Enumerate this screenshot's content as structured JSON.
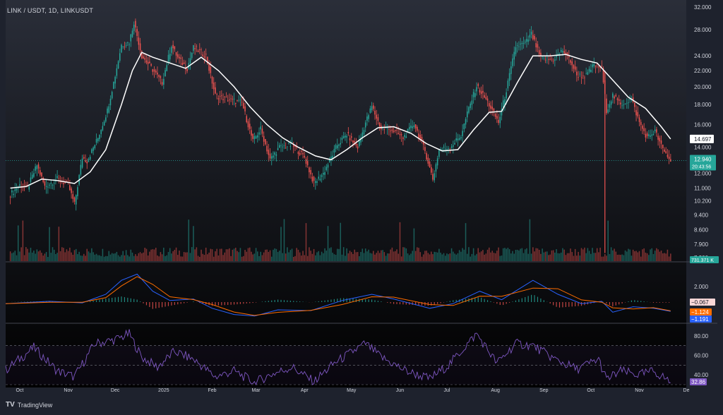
{
  "header": {
    "title": "LINK / USDT, 1D, LINKUSDT"
  },
  "footer": {
    "brand": "TradingView",
    "logo": "TV"
  },
  "colors": {
    "bull": "#26a69a",
    "bear": "#ef5350",
    "ma": "#ffffff",
    "macd": "#2962ff",
    "signal": "#ff6d00",
    "rsi": "#7e57c2",
    "axis_text": "#d1d4dc",
    "bg_top": "#2a2e39",
    "bg_bottom": "#000000"
  },
  "chart_data": [
    {
      "type": "candlestick",
      "name": "price",
      "ylim": [
        7.3,
        32.0
      ],
      "scale": "log",
      "y_ticks": [
        "32.000",
        "28.000",
        "24.000",
        "22.000",
        "20.000",
        "18.000",
        "16.000",
        "14.000",
        "12.000",
        "11.000",
        "10.200",
        "9.400",
        "8.600",
        "7.900",
        "7.300"
      ],
      "x_ticks": [
        "Oct",
        "Nov",
        "Dec",
        "2025",
        "Feb",
        "Mar",
        "Apr",
        "May",
        "Jun",
        "Jul",
        "Aug",
        "Sep",
        "Oct",
        "Nov",
        "De"
      ],
      "close_path": [
        [
          "2024-09-25",
          10.6
        ],
        [
          "2024-10-01",
          11.2
        ],
        [
          "2024-10-06",
          11.0
        ],
        [
          "2024-10-12",
          12.6
        ],
        [
          "2024-10-17",
          11.1
        ],
        [
          "2024-10-25",
          11.6
        ],
        [
          "2024-11-01",
          11.2
        ],
        [
          "2024-11-05",
          10.0
        ],
        [
          "2024-11-10",
          13.2
        ],
        [
          "2024-11-13",
          12.9
        ],
        [
          "2024-11-20",
          14.8
        ],
        [
          "2024-11-26",
          17.4
        ],
        [
          "2024-12-01",
          21.4
        ],
        [
          "2024-12-05",
          25.6
        ],
        [
          "2024-12-10",
          26.0
        ],
        [
          "2024-12-13",
          29.3
        ],
        [
          "2024-12-18",
          24.0
        ],
        [
          "2024-12-24",
          22.4
        ],
        [
          "2024-12-31",
          20.5
        ],
        [
          "2025-01-06",
          25.6
        ],
        [
          "2025-01-10",
          23.7
        ],
        [
          "2025-01-16",
          22.3
        ],
        [
          "2025-01-20",
          25.2
        ],
        [
          "2025-01-28",
          24.0
        ],
        [
          "2025-02-03",
          19.0
        ],
        [
          "2025-02-10",
          18.6
        ],
        [
          "2025-02-20",
          18.2
        ],
        [
          "2025-02-27",
          14.5
        ],
        [
          "2025-03-04",
          15.6
        ],
        [
          "2025-03-10",
          13.0
        ],
        [
          "2025-03-16",
          14.0
        ],
        [
          "2025-03-24",
          14.2
        ],
        [
          "2025-04-01",
          13.2
        ],
        [
          "2025-04-07",
          11.3
        ],
        [
          "2025-04-13",
          12.0
        ],
        [
          "2025-04-22",
          14.2
        ],
        [
          "2025-04-28",
          15.1
        ],
        [
          "2025-05-05",
          14.0
        ],
        [
          "2025-05-10",
          16.2
        ],
        [
          "2025-05-14",
          17.8
        ],
        [
          "2025-05-20",
          15.6
        ],
        [
          "2025-05-26",
          15.6
        ],
        [
          "2025-06-03",
          14.8
        ],
        [
          "2025-06-10",
          16.1
        ],
        [
          "2025-06-17",
          13.7
        ],
        [
          "2025-06-22",
          11.6
        ],
        [
          "2025-06-26",
          13.8
        ],
        [
          "2025-07-03",
          14.0
        ],
        [
          "2025-07-10",
          15.0
        ],
        [
          "2025-07-15",
          17.6
        ],
        [
          "2025-07-20",
          20.1
        ],
        [
          "2025-07-27",
          18.3
        ],
        [
          "2025-08-03",
          16.2
        ],
        [
          "2025-08-08",
          19.6
        ],
        [
          "2025-08-14",
          25.4
        ],
        [
          "2025-08-20",
          25.8
        ],
        [
          "2025-08-24",
          27.3
        ],
        [
          "2025-08-30",
          23.6
        ],
        [
          "2025-09-07",
          23.5
        ],
        [
          "2025-09-13",
          24.8
        ],
        [
          "2025-09-18",
          23.3
        ],
        [
          "2025-09-22",
          21.4
        ],
        [
          "2025-09-28",
          21.3
        ],
        [
          "2025-10-03",
          22.8
        ],
        [
          "2025-10-08",
          22.3
        ],
        [
          "2025-10-11",
          17.4
        ],
        [
          "2025-10-15",
          19.0
        ],
        [
          "2025-10-20",
          18.0
        ],
        [
          "2025-10-27",
          18.6
        ],
        [
          "2025-11-01",
          16.2
        ],
        [
          "2025-11-06",
          14.8
        ],
        [
          "2025-11-11",
          15.4
        ],
        [
          "2025-11-16",
          13.8
        ],
        [
          "2025-11-21",
          12.94
        ]
      ],
      "ma_path": [
        [
          "2024-09-25",
          11.0
        ],
        [
          "2024-10-05",
          11.1
        ],
        [
          "2024-10-15",
          11.6
        ],
        [
          "2024-10-25",
          11.5
        ],
        [
          "2024-11-05",
          11.3
        ],
        [
          "2024-11-15",
          12.1
        ],
        [
          "2024-11-25",
          13.8
        ],
        [
          "2024-12-05",
          18.0
        ],
        [
          "2024-12-12",
          22.0
        ],
        [
          "2024-12-18",
          24.5
        ],
        [
          "2024-12-25",
          23.8
        ],
        [
          "2025-01-05",
          23.0
        ],
        [
          "2025-01-15",
          22.3
        ],
        [
          "2025-01-25",
          23.8
        ],
        [
          "2025-02-05",
          22.0
        ],
        [
          "2025-02-15",
          20.0
        ],
        [
          "2025-02-25",
          17.8
        ],
        [
          "2025-03-08",
          16.0
        ],
        [
          "2025-03-18",
          14.8
        ],
        [
          "2025-03-28",
          14.0
        ],
        [
          "2025-04-08",
          13.3
        ],
        [
          "2025-04-18",
          13.0
        ],
        [
          "2025-04-28",
          13.8
        ],
        [
          "2025-05-08",
          14.8
        ],
        [
          "2025-05-18",
          15.7
        ],
        [
          "2025-05-28",
          15.8
        ],
        [
          "2025-06-08",
          15.2
        ],
        [
          "2025-06-18",
          14.3
        ],
        [
          "2025-06-28",
          13.7
        ],
        [
          "2025-07-08",
          13.8
        ],
        [
          "2025-07-18",
          15.5
        ],
        [
          "2025-07-28",
          17.2
        ],
        [
          "2025-08-05",
          17.3
        ],
        [
          "2025-08-15",
          20.5
        ],
        [
          "2025-08-25",
          24.0
        ],
        [
          "2025-09-05",
          24.0
        ],
        [
          "2025-09-15",
          24.2
        ],
        [
          "2025-09-25",
          23.5
        ],
        [
          "2025-10-05",
          23.0
        ],
        [
          "2025-10-15",
          20.8
        ],
        [
          "2025-10-25",
          18.8
        ],
        [
          "2025-11-05",
          17.6
        ],
        [
          "2025-11-15",
          15.8
        ],
        [
          "2025-11-21",
          14.697
        ]
      ],
      "labels": {
        "ma_value": "14.697",
        "last_price": "12.940",
        "countdown": "20:43:56"
      }
    },
    {
      "type": "bar",
      "name": "volume",
      "label": "731.371 K"
    },
    {
      "type": "line",
      "name": "macd",
      "y_ticks": [
        "2.000"
      ],
      "labels": {
        "histogram": "−0.067",
        "signal": "−1.124",
        "macd": "−1.191"
      }
    },
    {
      "type": "line",
      "name": "rsi",
      "ylim": [
        30,
        90
      ],
      "y_ticks": [
        "80.00",
        "60.00",
        "40.00"
      ],
      "bands": [
        30,
        50,
        70
      ],
      "labels": {
        "value": "32.86"
      }
    }
  ]
}
